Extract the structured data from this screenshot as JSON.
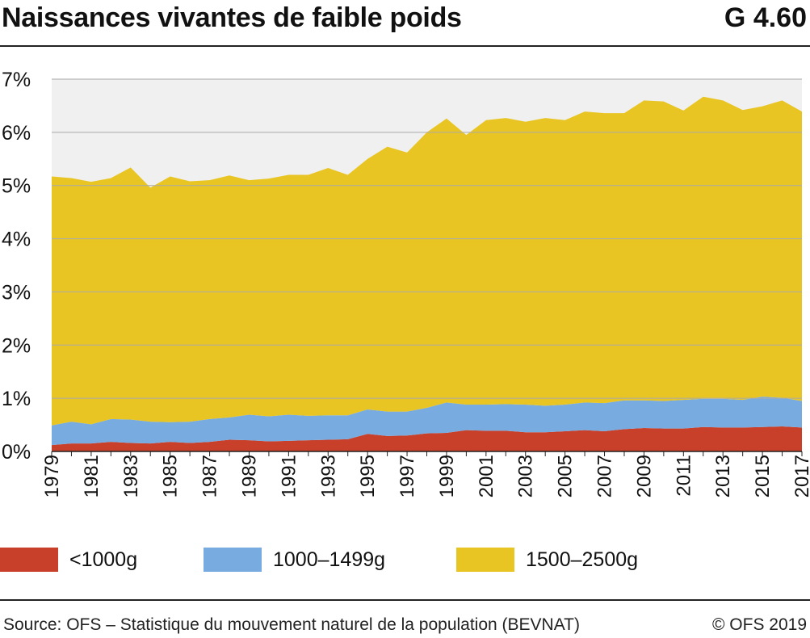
{
  "header": {
    "title": "Naissances vivantes de faible poids",
    "figure_number": "G 4.60"
  },
  "footer": {
    "source": "Source: OFS – Statistique du mouvement naturel de la population (BEVNAT)",
    "copyright": "© OFS 2019"
  },
  "colors": {
    "red": "#c9402a",
    "blue": "#78ace0",
    "yellow": "#e8c523",
    "plot_background": "#f0f0f0",
    "grid": "#aaaaaa"
  },
  "chart_data": {
    "type": "area",
    "stacked": true,
    "title": "Naissances vivantes de faible poids",
    "xlabel": "",
    "ylabel": "",
    "ylim": [
      0,
      7
    ],
    "y_ticks": [
      "0%",
      "1%",
      "2%",
      "3%",
      "4%",
      "5%",
      "6%",
      "7%"
    ],
    "x_tick_labels": [
      "1979",
      "1981",
      "1983",
      "1985",
      "1987",
      "1989",
      "1991",
      "1993",
      "1995",
      "1997",
      "1999",
      "2001",
      "2003",
      "2005",
      "2007",
      "2009",
      "2011",
      "2013",
      "2015",
      "2017"
    ],
    "grid": true,
    "legend_position": "bottom",
    "x": [
      1979,
      1980,
      1981,
      1982,
      1983,
      1984,
      1985,
      1986,
      1987,
      1988,
      1989,
      1990,
      1991,
      1992,
      1993,
      1994,
      1995,
      1996,
      1997,
      1998,
      1999,
      2000,
      2001,
      2002,
      2003,
      2004,
      2005,
      2006,
      2007,
      2008,
      2009,
      2010,
      2011,
      2012,
      2013,
      2014,
      2015,
      2016,
      2017
    ],
    "series": [
      {
        "name": "<1000g",
        "color": "#c9402a",
        "values": [
          0.12,
          0.15,
          0.15,
          0.18,
          0.16,
          0.15,
          0.18,
          0.16,
          0.18,
          0.22,
          0.21,
          0.19,
          0.2,
          0.21,
          0.22,
          0.23,
          0.33,
          0.29,
          0.3,
          0.34,
          0.35,
          0.4,
          0.39,
          0.39,
          0.36,
          0.36,
          0.38,
          0.4,
          0.38,
          0.42,
          0.44,
          0.43,
          0.43,
          0.46,
          0.45,
          0.45,
          0.46,
          0.47,
          0.45
        ]
      },
      {
        "name": "1000–1499g",
        "color": "#78ace0",
        "values": [
          0.37,
          0.41,
          0.36,
          0.43,
          0.44,
          0.41,
          0.37,
          0.4,
          0.43,
          0.42,
          0.48,
          0.47,
          0.49,
          0.46,
          0.46,
          0.45,
          0.46,
          0.46,
          0.45,
          0.48,
          0.57,
          0.48,
          0.49,
          0.5,
          0.52,
          0.5,
          0.5,
          0.52,
          0.53,
          0.54,
          0.52,
          0.52,
          0.54,
          0.53,
          0.54,
          0.52,
          0.57,
          0.54,
          0.5
        ]
      },
      {
        "name": "1500–2500g",
        "color": "#e8c523",
        "values": [
          4.68,
          4.58,
          4.56,
          4.53,
          4.74,
          4.4,
          4.62,
          4.52,
          4.49,
          4.55,
          4.41,
          4.47,
          4.51,
          4.53,
          4.65,
          4.52,
          4.71,
          4.98,
          4.87,
          5.18,
          5.34,
          5.07,
          5.35,
          5.38,
          5.32,
          5.41,
          5.35,
          5.47,
          5.45,
          5.4,
          5.64,
          5.63,
          5.44,
          5.68,
          5.61,
          5.45,
          5.46,
          5.59,
          5.44
        ]
      }
    ]
  }
}
